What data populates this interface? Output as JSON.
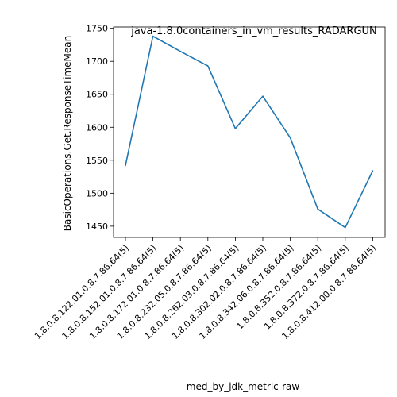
{
  "chart_data": {
    "type": "line",
    "title": "java-1.8.0containers_in_vm_results_RADARGUN",
    "xlabel": "med_by_jdk_metric-raw",
    "ylabel": "BasicOperations.Get.ResponseTimeMean",
    "categories": [
      "1.8.0.8.122.01.0.8.7.86.64(5)",
      "1.8.0.8.152.01.0.8.7.86.64(5)",
      "1.8.0.8.172.01.0.8.7.86.64(5)",
      "1.8.0.8.232.05.0.8.7.86.64(5)",
      "1.8.0.8.262.03.0.8.7.86.64(5)",
      "1.8.0.8.302.02.0.8.7.86.64(5)",
      "1.8.0.8.342.06.0.8.7.86.64(5)",
      "1.8.0.8.352.0.8.7.86.64(5)",
      "1.8.0.8.372.0.8.7.86.64(5)",
      "1.8.0.8.412.00.0.8.7.86.64(5)"
    ],
    "series": [
      {
        "values": [
          1542,
          1738,
          1715,
          1693,
          1598,
          1647,
          1584,
          1476,
          1448,
          1534
        ]
      }
    ],
    "ylim": [
      1433,
      1752
    ],
    "yticks": [
      1450,
      1500,
      1550,
      1600,
      1650,
      1700,
      1750
    ],
    "grid": false,
    "line_color": "#1f77b4"
  }
}
